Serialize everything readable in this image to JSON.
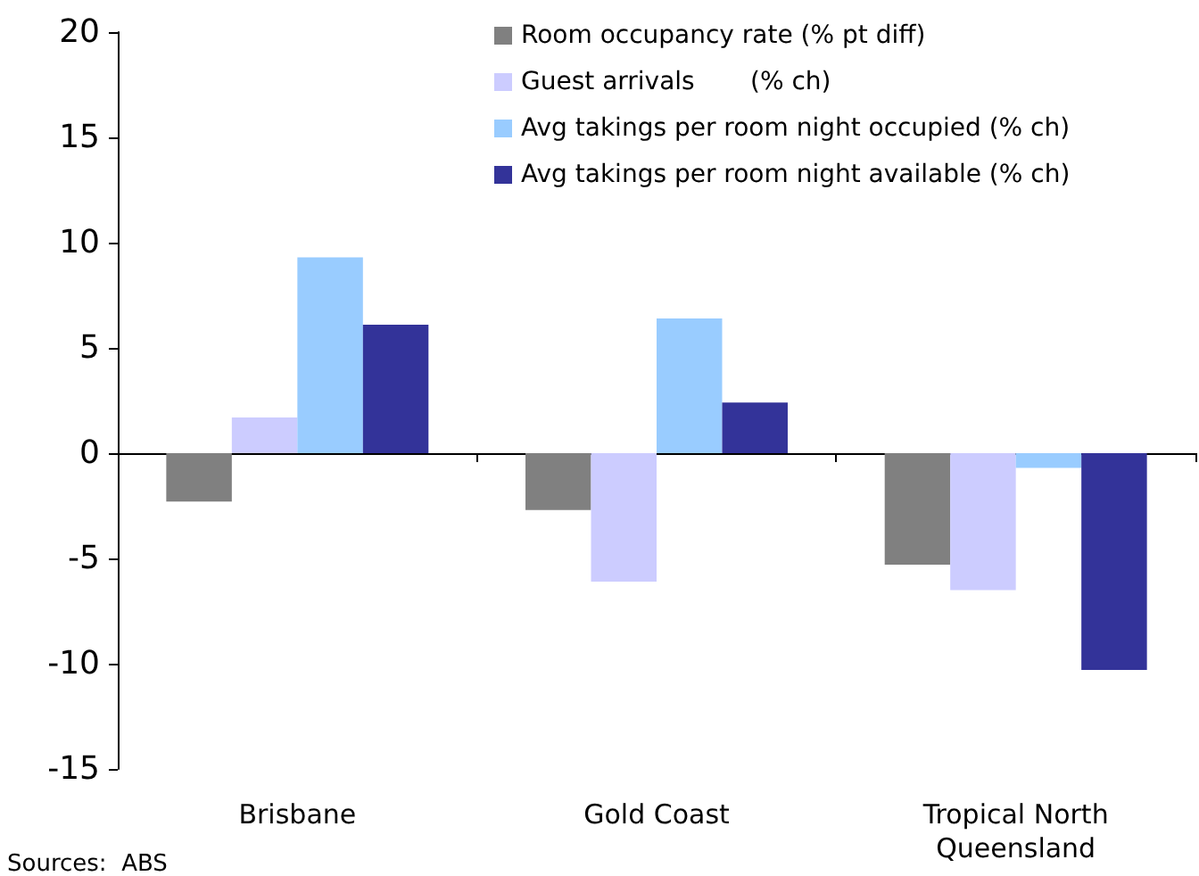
{
  "chart_data": {
    "type": "bar",
    "categories": [
      "Brisbane",
      "Gold Coast",
      "Tropical North\nQueensland"
    ],
    "series": [
      {
        "name": "Room occupancy rate (% pt diff)",
        "color": "#808080",
        "values": [
          -2.3,
          -2.7,
          -5.3
        ]
      },
      {
        "name": "Guest arrivals       (% ch)",
        "color": "#ccccff",
        "values": [
          1.7,
          -6.1,
          -6.5
        ]
      },
      {
        "name": "Avg takings per room night occupied (% ch)",
        "color": "#99ccff",
        "values": [
          9.3,
          6.4,
          -0.7
        ]
      },
      {
        "name": "Avg takings per room night available (% ch)",
        "color": "#333399",
        "values": [
          6.1,
          2.4,
          -10.3
        ]
      }
    ],
    "ylim": [
      -15,
      20
    ],
    "yticks": [
      -15,
      -10,
      -5,
      0,
      5,
      10,
      15,
      20
    ],
    "legend": "top right",
    "annotations": [
      "Sources:  ABS"
    ]
  }
}
